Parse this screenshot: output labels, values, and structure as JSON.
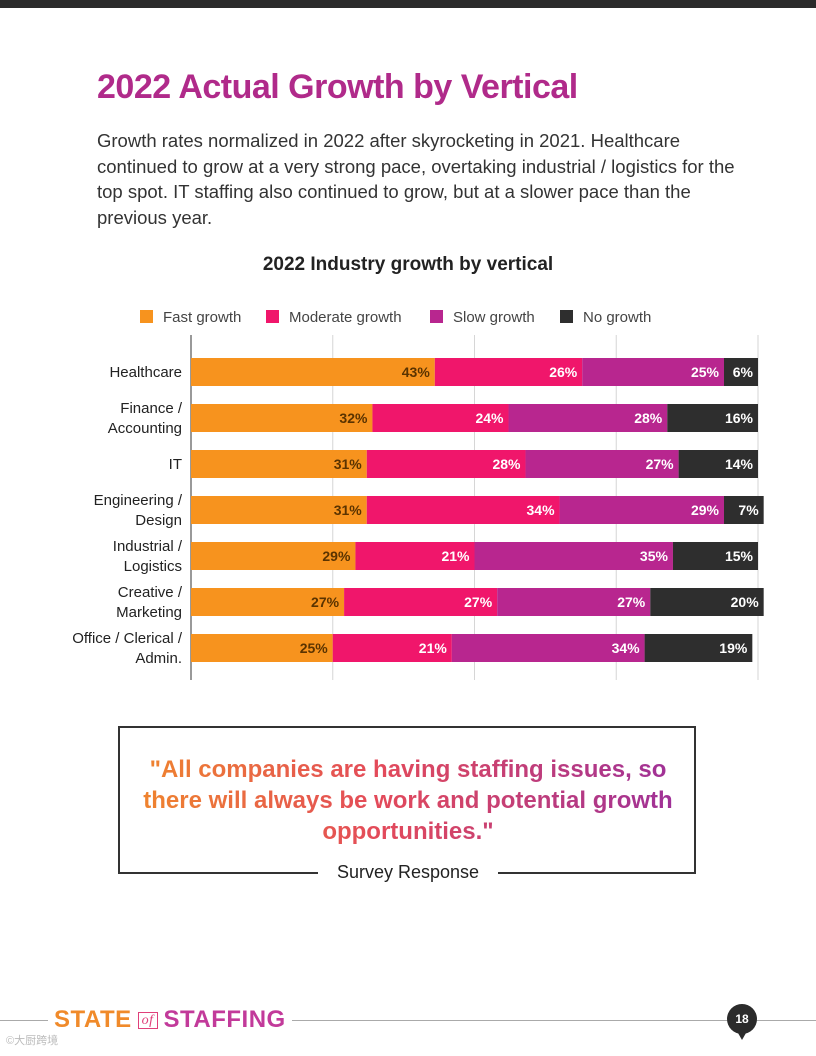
{
  "page": {
    "title": "2022 Actual Growth by Vertical",
    "intro": "Growth rates normalized in 2022 after skyrocketing in 2021. Healthcare continued to grow at a very strong pace, overtaking industrial / logistics for the top spot. IT staffing also continued to grow, but at a slower pace than the previous year.",
    "page_number": "18",
    "watermark": "©大厨跨境"
  },
  "quote": {
    "text": "\"All companies are having staffing issues, so there will always be work and potential growth opportunities.\"",
    "source": "Survey Response"
  },
  "footer": {
    "logo_state": "STATE",
    "logo_of": "of",
    "logo_staffing": "STAFFING"
  },
  "chart_data": {
    "type": "bar",
    "orientation": "horizontal",
    "stacked": true,
    "title": "2022 Industry growth by vertical",
    "xlim": [
      0,
      100
    ],
    "grid": true,
    "legend_position": "top",
    "categories": [
      [
        "Healthcare"
      ],
      [
        "Finance /",
        "Accounting"
      ],
      [
        "IT"
      ],
      [
        "Engineering /",
        "Design"
      ],
      [
        "Industrial /",
        "Logistics"
      ],
      [
        "Creative /",
        "Marketing"
      ],
      [
        "Office / Clerical /",
        "Admin."
      ]
    ],
    "series": [
      {
        "name": "Fast growth",
        "color": "#f7931e",
        "label_color": "#5a3300",
        "values": [
          43,
          32,
          31,
          31,
          29,
          27,
          25
        ]
      },
      {
        "name": "Moderate growth",
        "color": "#f0166b",
        "label_color": "#ffffff",
        "values": [
          26,
          24,
          28,
          34,
          21,
          27,
          21
        ]
      },
      {
        "name": "Slow growth",
        "color": "#b8268f",
        "label_color": "#ffffff",
        "values": [
          25,
          28,
          27,
          29,
          35,
          27,
          34
        ]
      },
      {
        "name": "No growth",
        "color": "#2e2e2e",
        "label_color": "#ffffff",
        "values": [
          6,
          16,
          14,
          7,
          15,
          20,
          19
        ]
      }
    ]
  }
}
